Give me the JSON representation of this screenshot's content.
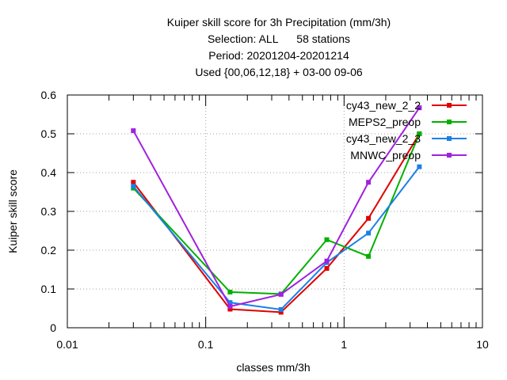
{
  "chart_data": {
    "type": "line",
    "title_lines": [
      "Kuiper skill score  for 3h Precipitation (mm/3h)",
      "Selection: ALL      58 stations",
      "Period: 20201204-20201214",
      "Used {00,06,12,18} + 03-00 09-06"
    ],
    "xlabel": "classes mm/3h",
    "ylabel": "Kuiper skill score",
    "x_scale": "log",
    "xlim": [
      0.01,
      10
    ],
    "ylim": [
      0,
      0.6
    ],
    "x_ticks": [
      0.01,
      0.1,
      1,
      10
    ],
    "x_tick_labels": [
      "0.01",
      "0.1",
      "1",
      "10"
    ],
    "y_ticks": [
      0,
      0.1,
      0.2,
      0.3,
      0.4,
      0.5,
      0.6
    ],
    "y_tick_labels": [
      "0",
      "0.1",
      "0.2",
      "0.3",
      "0.4",
      "0.5",
      "0.6"
    ],
    "grid": true,
    "legend_position": "top-right",
    "x": [
      0.03,
      0.15,
      0.35,
      0.75,
      1.5,
      3.5
    ],
    "series": [
      {
        "name": "cy43_new_2_2",
        "color": "#e00000",
        "values": [
          0.375,
          0.048,
          0.04,
          0.153,
          0.282,
          0.5
        ]
      },
      {
        "name": "MEPS2_preop",
        "color": "#00b000",
        "values": [
          0.36,
          0.092,
          0.087,
          0.227,
          0.184,
          0.5
        ]
      },
      {
        "name": "cy43_new_2_3",
        "color": "#1a80e6",
        "values": [
          0.365,
          0.065,
          0.047,
          0.168,
          0.244,
          0.415
        ]
      },
      {
        "name": "MNWC_preop",
        "color": "#a020e0",
        "values": [
          0.508,
          0.055,
          0.086,
          0.172,
          0.375,
          0.567
        ]
      }
    ]
  }
}
